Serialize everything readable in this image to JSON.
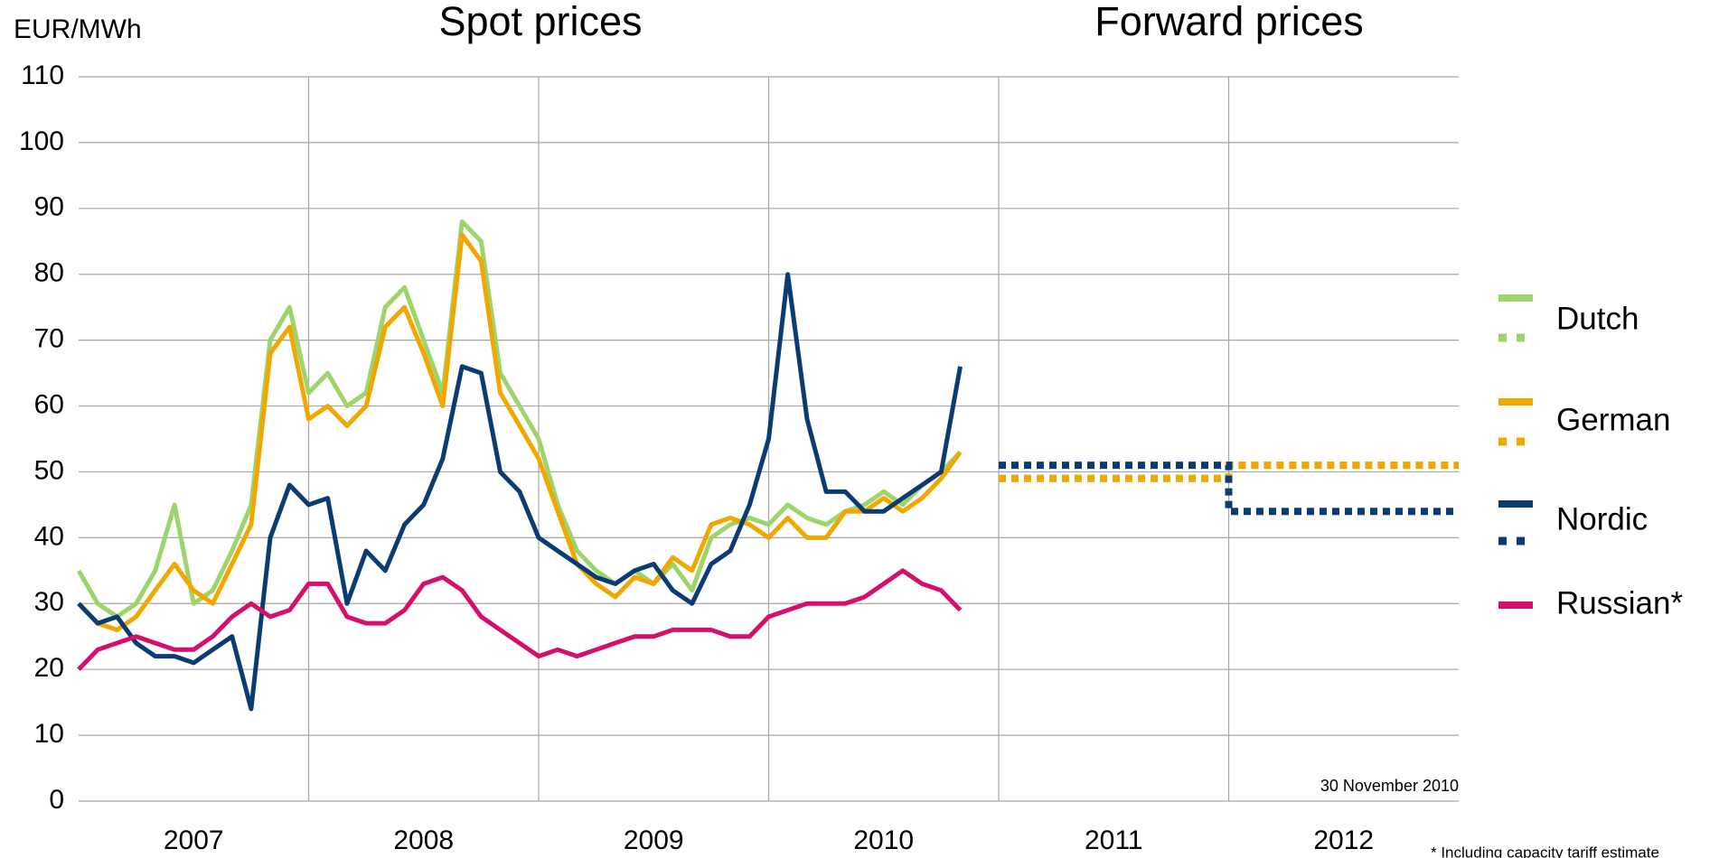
{
  "chart_data": {
    "type": "line",
    "titles": [
      "Spot prices",
      "Forward prices"
    ],
    "y_label": "EUR/MWh",
    "annotation": "30 November 2010",
    "footnote": "* Including capacity tariff estimate",
    "xlim": [
      2007,
      2013
    ],
    "xticks": [
      {
        "value": 2007.5,
        "label": "2007"
      },
      {
        "value": 2008.5,
        "label": "2008"
      },
      {
        "value": 2009.5,
        "label": "2009"
      },
      {
        "value": 2010.5,
        "label": "2010"
      },
      {
        "value": 2011.5,
        "label": "2011"
      },
      {
        "value": 2012.5,
        "label": "2012"
      }
    ],
    "xgrid": [
      2008,
      2009,
      2010,
      2011,
      2012
    ],
    "ylim": [
      0,
      110
    ],
    "yticks": [
      0,
      10,
      20,
      30,
      40,
      50,
      60,
      70,
      80,
      90,
      100,
      110
    ],
    "grid": true,
    "x": [
      2007,
      2007.083,
      2007.167,
      2007.25,
      2007.333,
      2007.417,
      2007.5,
      2007.583,
      2007.667,
      2007.75,
      2007.833,
      2007.917,
      2008,
      2008.083,
      2008.167,
      2008.25,
      2008.333,
      2008.417,
      2008.5,
      2008.583,
      2008.667,
      2008.75,
      2008.833,
      2008.917,
      2009,
      2009.083,
      2009.167,
      2009.25,
      2009.333,
      2009.417,
      2009.5,
      2009.583,
      2009.667,
      2009.75,
      2009.833,
      2009.917,
      2010,
      2010.083,
      2010.167,
      2010.25,
      2010.333,
      2010.417,
      2010.5,
      2010.583,
      2010.667,
      2010.75,
      2010.833
    ],
    "forward_x": [
      2011,
      2012,
      2012,
      2013
    ],
    "series": [
      {
        "name": "Dutch",
        "color": "#9dd46c",
        "values": [
          35,
          30,
          28,
          30,
          35,
          45,
          30,
          32,
          38,
          45,
          70,
          75,
          62,
          65,
          60,
          62,
          75,
          78,
          70,
          62,
          88,
          85,
          65,
          60,
          55,
          45,
          38,
          35,
          33,
          35,
          33,
          36,
          32,
          40,
          42,
          43,
          42,
          45,
          43,
          42,
          44,
          45,
          47,
          45,
          48,
          50,
          53
        ],
        "forward": [
          49,
          49,
          51,
          51
        ]
      },
      {
        "name": "German",
        "color": "#f0a800",
        "values": [
          30,
          27,
          26,
          28,
          32,
          36,
          32,
          30,
          36,
          42,
          68,
          72,
          58,
          60,
          57,
          60,
          72,
          75,
          68,
          60,
          86,
          82,
          62,
          57,
          52,
          44,
          36,
          33,
          31,
          34,
          33,
          37,
          35,
          42,
          43,
          42,
          40,
          43,
          40,
          40,
          44,
          44,
          46,
          44,
          46,
          49,
          53
        ],
        "forward": [
          49,
          49,
          51,
          51
        ]
      },
      {
        "name": "Nordic",
        "color": "#0b3b73",
        "values": [
          30,
          27,
          28,
          24,
          22,
          22,
          21,
          23,
          25,
          14,
          40,
          48,
          45,
          46,
          30,
          38,
          35,
          42,
          45,
          52,
          66,
          65,
          50,
          47,
          40,
          38,
          36,
          34,
          33,
          35,
          36,
          32,
          30,
          36,
          38,
          45,
          55,
          80,
          58,
          47,
          47,
          44,
          44,
          46,
          48,
          50,
          66
        ],
        "forward": [
          51,
          51,
          44,
          44
        ]
      },
      {
        "name": "Russian*",
        "color": "#d6106a",
        "values": [
          20,
          23,
          24,
          25,
          24,
          23,
          23,
          25,
          28,
          30,
          28,
          29,
          33,
          33,
          28,
          27,
          27,
          29,
          33,
          34,
          32,
          28,
          26,
          24,
          22,
          23,
          22,
          23,
          24,
          25,
          25,
          26,
          26,
          26,
          25,
          25,
          28,
          29,
          30,
          30,
          30,
          31,
          33,
          35,
          33,
          32,
          29
        ]
      }
    ]
  }
}
